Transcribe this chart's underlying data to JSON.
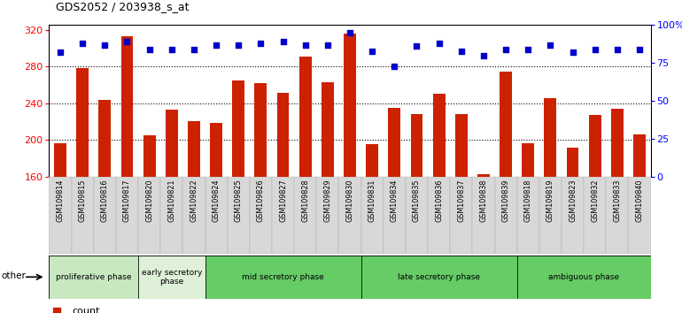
{
  "title": "GDS2052 / 203938_s_at",
  "samples": [
    "GSM109814",
    "GSM109815",
    "GSM109816",
    "GSM109817",
    "GSM109820",
    "GSM109821",
    "GSM109822",
    "GSM109824",
    "GSM109825",
    "GSM109826",
    "GSM109827",
    "GSM109828",
    "GSM109829",
    "GSM109830",
    "GSM109831",
    "GSM109834",
    "GSM109835",
    "GSM109836",
    "GSM109837",
    "GSM109838",
    "GSM109839",
    "GSM109818",
    "GSM109819",
    "GSM109823",
    "GSM109832",
    "GSM109833",
    "GSM109840"
  ],
  "bar_values": [
    197,
    278,
    244,
    313,
    205,
    233,
    221,
    219,
    265,
    262,
    251,
    291,
    263,
    316,
    196,
    235,
    228,
    250,
    228,
    163,
    274,
    197,
    246,
    192,
    227,
    234,
    206
  ],
  "percentile_values": [
    82,
    88,
    87,
    89,
    84,
    84,
    84,
    87,
    87,
    88,
    89,
    87,
    87,
    95,
    83,
    73,
    86,
    88,
    83,
    80,
    84,
    84,
    87,
    82,
    84,
    84,
    84
  ],
  "bar_color": "#cc2200",
  "dot_color": "#0000cc",
  "bar_bottom": 160,
  "ylim_left": [
    160,
    325
  ],
  "ylim_right": [
    0,
    100
  ],
  "yticks_left": [
    160,
    200,
    240,
    280,
    320
  ],
  "yticks_right": [
    0,
    25,
    50,
    75,
    100
  ],
  "ytick_labels_right": [
    "0",
    "25",
    "50",
    "75",
    "100%"
  ],
  "grid_lines": [
    200,
    240,
    280
  ],
  "phases": [
    {
      "label": "proliferative phase",
      "start": 0,
      "end": 4,
      "color": "#c8e8c0"
    },
    {
      "label": "early secretory\nphase",
      "start": 4,
      "end": 7,
      "color": "#dff0d8"
    },
    {
      "label": "mid secretory phase",
      "start": 7,
      "end": 14,
      "color": "#66cc66"
    },
    {
      "label": "late secretory phase",
      "start": 14,
      "end": 21,
      "color": "#66cc66"
    },
    {
      "label": "ambiguous phase",
      "start": 21,
      "end": 27,
      "color": "#66cc66"
    }
  ]
}
